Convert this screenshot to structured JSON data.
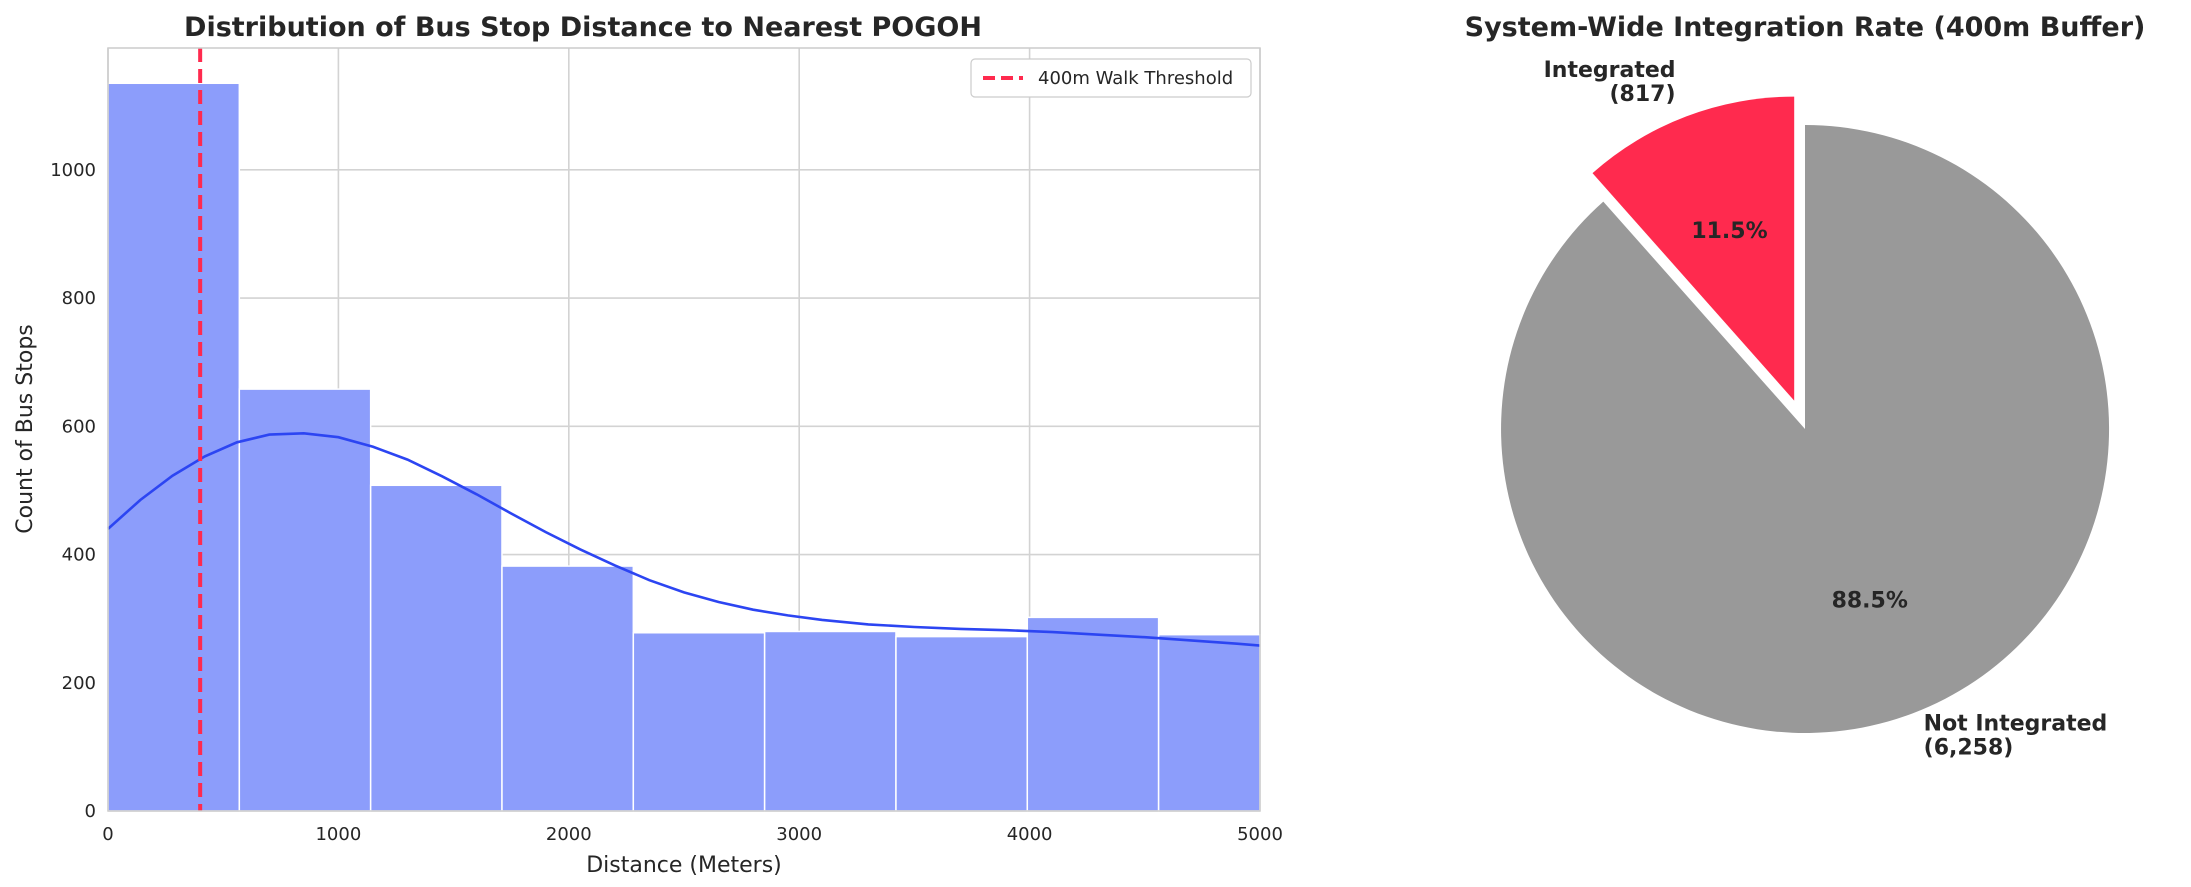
{
  "chart_data": [
    {
      "type": "histogram",
      "title": "Distribution of Bus Stop Distance to Nearest POGOH",
      "xlabel": "Distance (Meters)",
      "ylabel": "Count of Bus Stops",
      "xlim": [
        0,
        5000
      ],
      "ylim": [
        0,
        1190
      ],
      "xticks": [
        0,
        1000,
        2000,
        3000,
        4000,
        5000
      ],
      "yticks": [
        0,
        200,
        400,
        600,
        800,
        1000
      ],
      "grid": true,
      "bin_edges": [
        0,
        570,
        1140,
        1710,
        2280,
        2850,
        3420,
        3990,
        4560,
        5130
      ],
      "counts": [
        1135,
        658,
        508,
        382,
        278,
        280,
        272,
        302,
        275
      ],
      "kde": {
        "x": [
          0,
          140,
          280,
          420,
          560,
          700,
          850,
          1000,
          1150,
          1300,
          1450,
          1600,
          1750,
          1900,
          2050,
          2200,
          2350,
          2500,
          2650,
          2800,
          2950,
          3100,
          3300,
          3500,
          3700,
          3900,
          4100,
          4300,
          4500,
          4700,
          4900,
          5000
        ],
        "y": [
          440,
          485,
          523,
          553,
          575,
          587,
          589,
          583,
          568,
          548,
          522,
          494,
          464,
          435,
          408,
          383,
          360,
          341,
          326,
          314,
          305,
          298,
          291,
          287,
          284,
          282,
          279,
          275,
          271,
          266,
          261,
          258
        ]
      },
      "threshold": {
        "x": 400,
        "label": "400m Walk Threshold"
      },
      "legend_position": "top-right",
      "colors": {
        "bars": "#8c9dfb",
        "kde": "#2c45f2",
        "threshold": "#ff2a4e",
        "grid": "#d3d3d3"
      }
    },
    {
      "type": "pie",
      "title": "System-Wide Integration Rate (400m Buffer)",
      "slices": [
        {
          "label": "Integrated",
          "count_label": "(817)",
          "value": 817,
          "pct_label": "11.5%",
          "color": "#ff2a4e",
          "explode": 0.1
        },
        {
          "label": "Not Integrated",
          "count_label": "(6,258)",
          "value": 6258,
          "pct_label": "88.5%",
          "color": "#999999",
          "explode": 0
        }
      ],
      "start_angle_deg": 90
    }
  ]
}
